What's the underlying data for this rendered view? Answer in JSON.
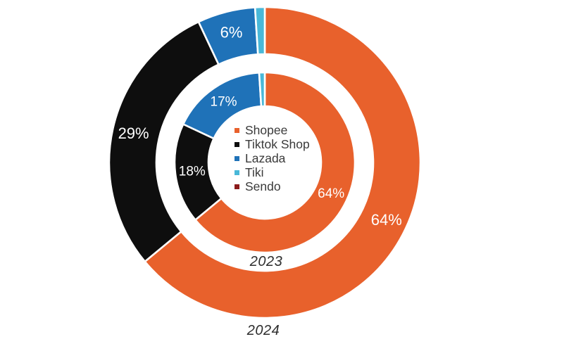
{
  "chart_data": {
    "type": "pie",
    "subtype": "nested-donut",
    "title": "",
    "categories": [
      "Shopee",
      "Tiktok Shop",
      "Lazada",
      "Tiki",
      "Sendo"
    ],
    "colors": [
      "#E8612C",
      "#0E0E0E",
      "#1F72B8",
      "#49B8D8",
      "#8B1B1B"
    ],
    "series": [
      {
        "name": "2023",
        "ring": "inner",
        "values": [
          64,
          18,
          17,
          1,
          0
        ]
      },
      {
        "name": "2024",
        "ring": "outer",
        "values": [
          64,
          29,
          6,
          1,
          0
        ]
      }
    ],
    "data_labels": {
      "format": "percent",
      "suffix": "%",
      "color": "#ffffff",
      "min_value_for_label": 5,
      "visible_labels_inner": [
        "64%",
        "18%",
        "17%"
      ],
      "visible_labels_outer": [
        "64%",
        "29%",
        "6%"
      ]
    },
    "legend": {
      "position": "center",
      "items": [
        "Shopee",
        "Tiktok Shop",
        "Lazada",
        "Tiki",
        "Sendo"
      ]
    },
    "ring_year_labels": [
      {
        "text": "2023",
        "position": "bottom gap between rings"
      },
      {
        "text": "2024",
        "position": "below outer ring"
      }
    ],
    "layout_hints": {
      "start_angle": "12 o'clock",
      "direction": "clockwise",
      "segment_separator_color": "#ffffff"
    }
  }
}
